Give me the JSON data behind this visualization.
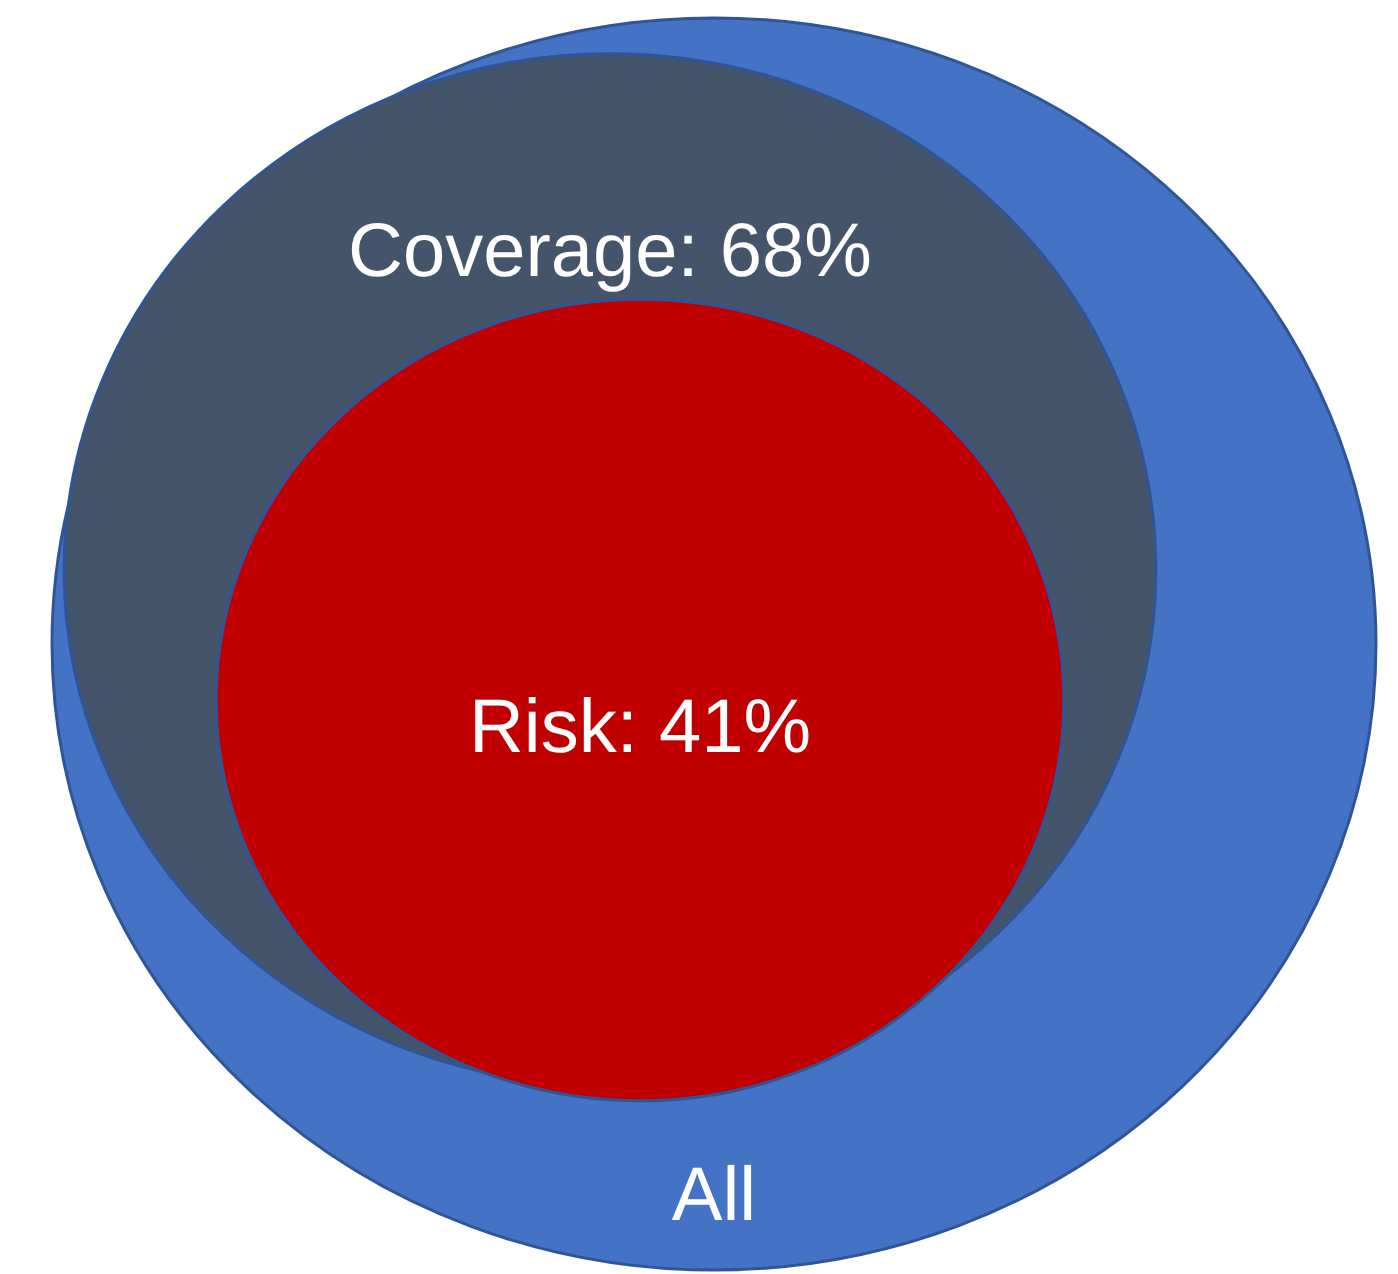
{
  "chart_data": {
    "type": "other",
    "categories": [
      "All",
      "Coverage",
      "Risk"
    ],
    "values": [
      null,
      68,
      41
    ],
    "value_labels": [
      null,
      ": 68%",
      ": 41%"
    ],
    "colors": [
      "#4472c4",
      "#44546a",
      "#c00000"
    ]
  }
}
